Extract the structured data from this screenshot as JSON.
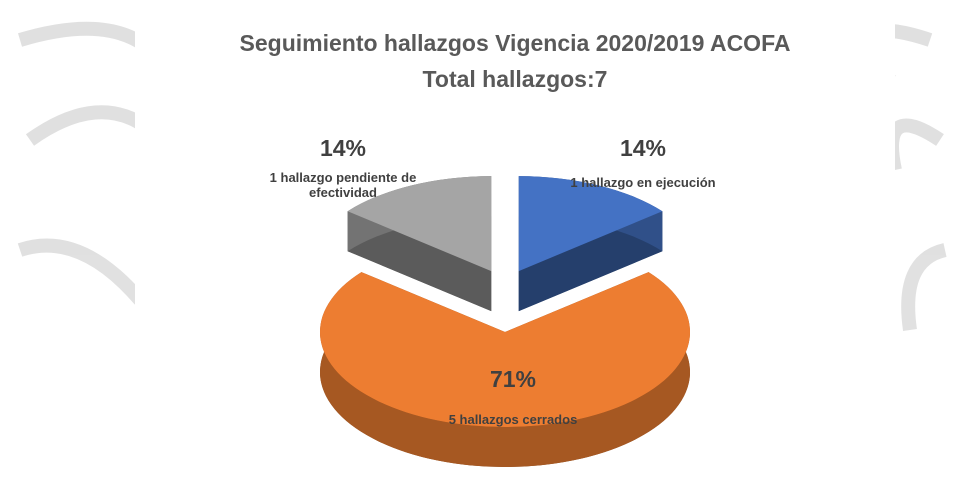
{
  "chart_data": {
    "type": "pie",
    "title": "Seguimiento hallazgos Vigencia 2020/2019 ACOFA",
    "subtitle": "Total hallazgos:7",
    "categories": [
      "1 hallazgo en ejecución",
      "5 hallazgos cerrados",
      "1 hallazgo pendiente de efectividad"
    ],
    "values": [
      14,
      71,
      14
    ],
    "value_labels": [
      "14%",
      "71%",
      "14%"
    ],
    "colors": [
      "#4472c4",
      "#ed7d31",
      "#a5a5a5"
    ]
  }
}
